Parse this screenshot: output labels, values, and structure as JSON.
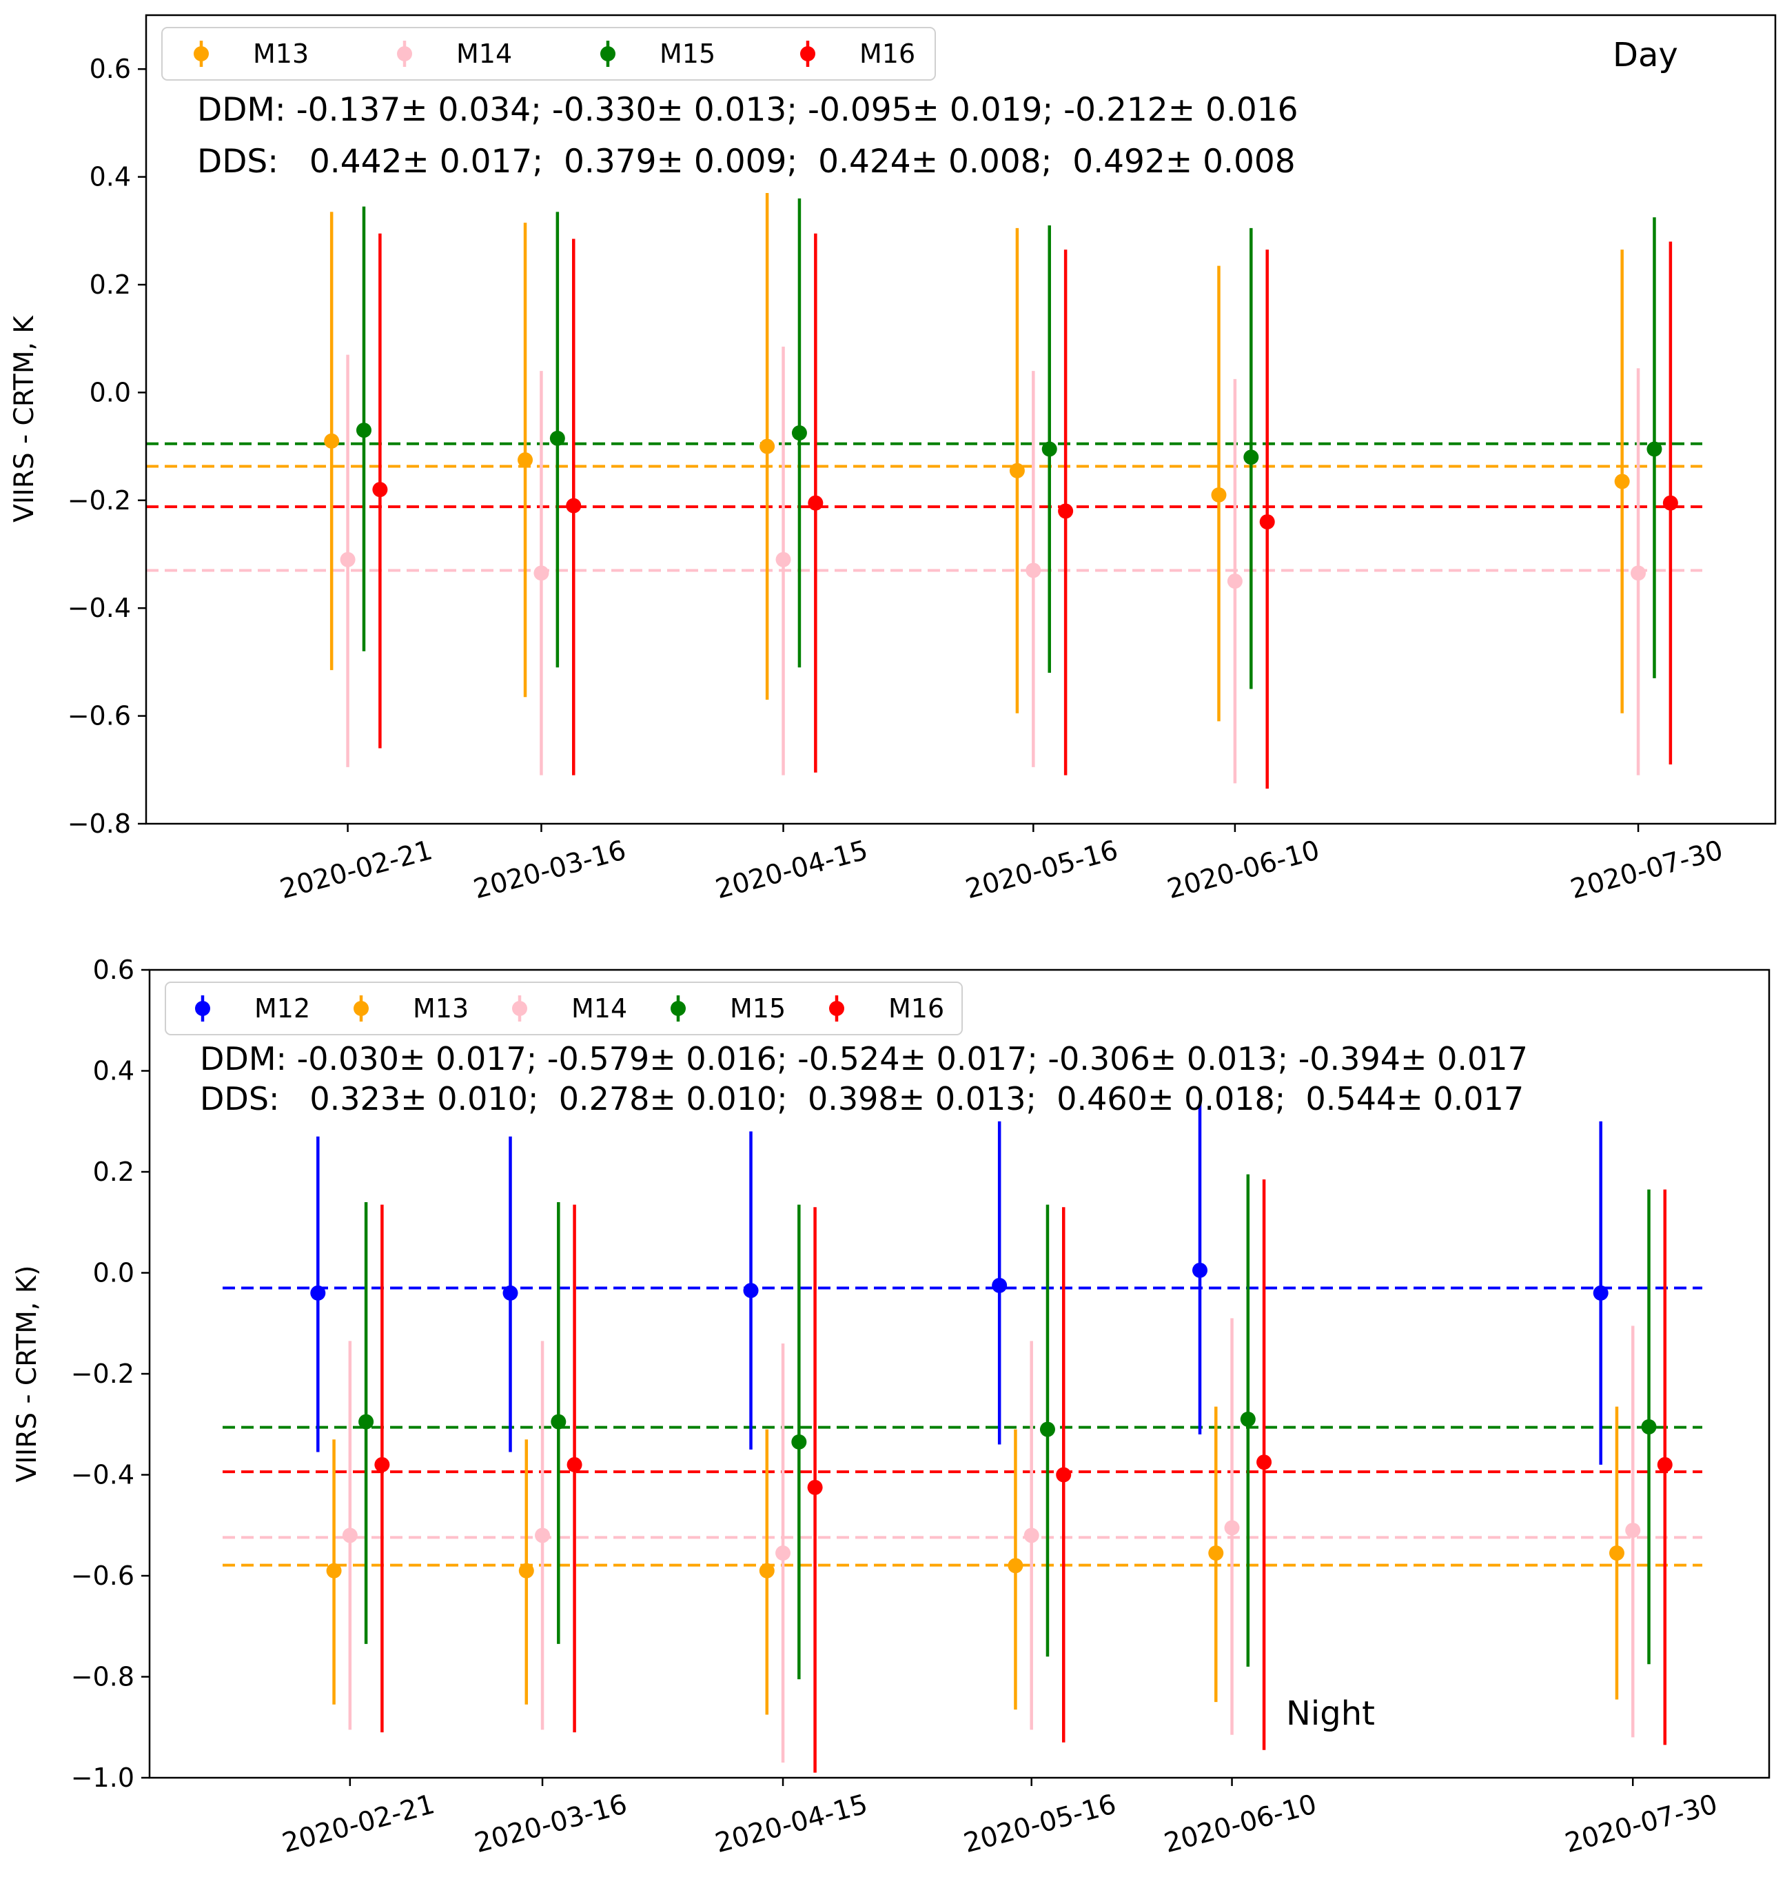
{
  "chart_data": [
    {
      "type": "scatter",
      "panel_label": "Day",
      "ylabel": "VIIRS - CRTM, K",
      "xlabel": "",
      "ylim": [
        -0.8,
        0.7
      ],
      "yticks": [
        -0.8,
        -0.6,
        -0.4,
        -0.2,
        0.0,
        0.2,
        0.4,
        0.6
      ],
      "ytick_labels": [
        "−0.8",
        "−0.6",
        "−0.4",
        "−0.2",
        "0.0",
        "0.2",
        "0.4",
        "0.6"
      ],
      "x_date_range": [
        "2020-01-27",
        "2020-08-16"
      ],
      "xtick_dates": [
        "2020-02-21",
        "2020-03-16",
        "2020-04-15",
        "2020-05-16",
        "2020-06-10",
        "2020-07-30"
      ],
      "xtick_labels": [
        "2020-02-21",
        "2020-03-16",
        "2020-04-15",
        "2020-05-16",
        "2020-06-10",
        "2020-07-30"
      ],
      "stats_lines": [
        "DDM: -0.137± 0.034; -0.330± 0.013; -0.095± 0.019; -0.212± 0.016",
        "DDS:   0.442± 0.017;  0.379± 0.009;  0.424± 0.008;  0.492± 0.008"
      ],
      "series": [
        {
          "name": "M13",
          "color": "#FFA500",
          "offset_days": -2,
          "values": [
            -0.09,
            -0.125,
            -0.1,
            -0.145,
            -0.19,
            -0.165
          ],
          "err_low": [
            -0.515,
            -0.565,
            -0.57,
            -0.595,
            -0.61,
            -0.595
          ],
          "err_high": [
            0.335,
            0.315,
            0.37,
            0.305,
            0.235,
            0.265
          ],
          "mean_line": -0.137
        },
        {
          "name": "M14",
          "color": "#FFC0CB",
          "offset_days": 0,
          "values": [
            -0.31,
            -0.335,
            -0.31,
            -0.33,
            -0.35,
            -0.335
          ],
          "err_low": [
            -0.695,
            -0.71,
            -0.71,
            -0.695,
            -0.725,
            -0.71
          ],
          "err_high": [
            0.07,
            0.04,
            0.085,
            0.04,
            0.025,
            0.045
          ],
          "mean_line": -0.33
        },
        {
          "name": "M15",
          "color": "#008000",
          "offset_days": 2,
          "values": [
            -0.07,
            -0.085,
            -0.075,
            -0.105,
            -0.12,
            -0.105
          ],
          "err_low": [
            -0.48,
            -0.51,
            -0.51,
            -0.52,
            -0.55,
            -0.53
          ],
          "err_high": [
            0.345,
            0.335,
            0.36,
            0.31,
            0.305,
            0.325
          ],
          "mean_line": -0.095
        },
        {
          "name": "M16",
          "color": "#FF0000",
          "offset_days": 4,
          "values": [
            -0.18,
            -0.21,
            -0.205,
            -0.22,
            -0.24,
            -0.205
          ],
          "err_low": [
            -0.66,
            -0.71,
            -0.705,
            -0.71,
            -0.735,
            -0.69
          ],
          "err_high": [
            0.295,
            0.285,
            0.295,
            0.265,
            0.265,
            0.28
          ],
          "mean_line": -0.212
        }
      ]
    },
    {
      "type": "scatter",
      "panel_label": "Night",
      "ylabel": "VIIRS - CRTM, K)",
      "xlabel": "",
      "ylim": [
        -1.0,
        0.6
      ],
      "yticks": [
        -1.0,
        -0.8,
        -0.6,
        -0.4,
        -0.2,
        0.0,
        0.2,
        0.4,
        0.6
      ],
      "ytick_labels": [
        "−1.0",
        "−0.8",
        "−0.6",
        "−0.4",
        "−0.2",
        "0.0",
        "0.2",
        "0.4",
        "0.6"
      ],
      "x_date_range": [
        "2020-01-27",
        "2020-08-16"
      ],
      "xtick_dates": [
        "2020-02-21",
        "2020-03-16",
        "2020-04-15",
        "2020-05-16",
        "2020-06-10",
        "2020-07-30"
      ],
      "xtick_labels": [
        "2020-02-21",
        "2020-03-16",
        "2020-04-15",
        "2020-05-16",
        "2020-06-10",
        "2020-07-30"
      ],
      "stats_lines": [
        "DDM: -0.030± 0.017; -0.579± 0.016; -0.524± 0.017; -0.306± 0.013; -0.394± 0.017",
        "DDS:   0.323± 0.010;  0.278± 0.010;  0.398± 0.013;  0.460± 0.018;  0.544± 0.017"
      ],
      "series": [
        {
          "name": "M12",
          "color": "#0000FF",
          "offset_days": -4,
          "values": [
            -0.04,
            -0.04,
            -0.035,
            -0.025,
            0.005,
            -0.04
          ],
          "err_low": [
            -0.355,
            -0.355,
            -0.35,
            -0.34,
            -0.32,
            -0.38
          ],
          "err_high": [
            0.27,
            0.27,
            0.28,
            0.3,
            0.335,
            0.3
          ],
          "mean_line": -0.03
        },
        {
          "name": "M13",
          "color": "#FFA500",
          "offset_days": -2,
          "values": [
            -0.59,
            -0.59,
            -0.59,
            -0.58,
            -0.555,
            -0.555
          ],
          "err_low": [
            -0.855,
            -0.855,
            -0.875,
            -0.865,
            -0.85,
            -0.845
          ],
          "err_high": [
            -0.33,
            -0.33,
            -0.31,
            -0.31,
            -0.265,
            -0.265
          ],
          "mean_line": -0.579
        },
        {
          "name": "M14",
          "color": "#FFC0CB",
          "offset_days": 0,
          "values": [
            -0.52,
            -0.52,
            -0.555,
            -0.52,
            -0.505,
            -0.51
          ],
          "err_low": [
            -0.905,
            -0.905,
            -0.97,
            -0.905,
            -0.915,
            -0.92
          ],
          "err_high": [
            -0.135,
            -0.135,
            -0.14,
            -0.135,
            -0.09,
            -0.105
          ],
          "mean_line": -0.524
        },
        {
          "name": "M15",
          "color": "#008000",
          "offset_days": 2,
          "values": [
            -0.295,
            -0.295,
            -0.335,
            -0.31,
            -0.29,
            -0.305
          ],
          "err_low": [
            -0.735,
            -0.735,
            -0.805,
            -0.76,
            -0.78,
            -0.775
          ],
          "err_high": [
            0.14,
            0.14,
            0.135,
            0.135,
            0.195,
            0.165
          ],
          "mean_line": -0.306
        },
        {
          "name": "M16",
          "color": "#FF0000",
          "offset_days": 4,
          "values": [
            -0.38,
            -0.38,
            -0.425,
            -0.4,
            -0.375,
            -0.38
          ],
          "err_low": [
            -0.91,
            -0.91,
            -0.99,
            -0.93,
            -0.945,
            -0.935
          ],
          "err_high": [
            0.135,
            0.135,
            0.13,
            0.13,
            0.185,
            0.165
          ],
          "mean_line": -0.394
        }
      ]
    }
  ]
}
